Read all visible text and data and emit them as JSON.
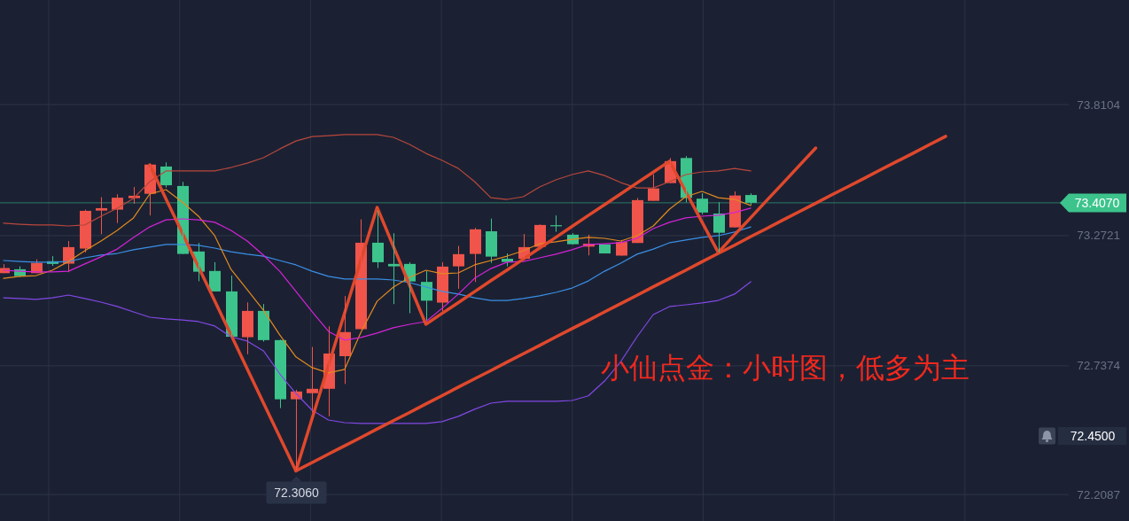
{
  "chart_data": {
    "type": "candlestick",
    "categories": [
      null,
      null,
      null,
      null,
      null,
      null,
      null,
      null,
      null,
      null,
      null,
      null,
      null,
      null,
      null,
      null,
      null,
      null,
      null,
      null,
      null,
      null,
      null,
      null,
      null,
      null,
      null,
      null,
      null,
      null,
      null,
      null,
      null,
      null,
      null,
      null,
      null,
      null,
      null,
      null,
      null,
      null,
      null,
      null,
      null,
      null,
      null,
      null,
      null,
      null,
      null,
      null,
      null,
      null,
      null,
      null,
      null,
      null,
      null
    ],
    "ohlc": [
      [
        73.118,
        73.155,
        73.118,
        73.139
      ],
      [
        73.134,
        73.146,
        73.102,
        73.106
      ],
      [
        73.118,
        73.175,
        73.118,
        73.16
      ],
      [
        73.167,
        73.188,
        73.148,
        73.156
      ],
      [
        73.157,
        73.25,
        73.122,
        73.225
      ],
      [
        73.219,
        73.379,
        73.203,
        73.374
      ],
      [
        73.375,
        73.43,
        73.278,
        73.385
      ],
      [
        73.379,
        73.442,
        73.324,
        73.428
      ],
      [
        73.426,
        73.472,
        73.403,
        73.436
      ],
      [
        73.444,
        73.567,
        73.355,
        73.564
      ],
      [
        73.556,
        73.573,
        73.47,
        73.479
      ],
      [
        73.476,
        73.493,
        73.197,
        73.197
      ],
      [
        73.207,
        73.242,
        73.085,
        73.124
      ],
      [
        73.127,
        73.163,
        73.043,
        73.043
      ],
      [
        73.043,
        73.108,
        72.851,
        72.857
      ],
      [
        72.855,
        72.998,
        72.785,
        72.963
      ],
      [
        72.963,
        72.991,
        72.837,
        72.843
      ],
      [
        72.843,
        72.845,
        72.564,
        72.6
      ],
      [
        72.6,
        72.639,
        72.306,
        72.632
      ],
      [
        72.625,
        72.815,
        72.545,
        72.643
      ],
      [
        72.643,
        72.9,
        72.53,
        72.788
      ],
      [
        72.777,
        73.024,
        72.663,
        72.876
      ],
      [
        72.888,
        73.339,
        72.888,
        73.243
      ],
      [
        73.243,
        73.374,
        73.139,
        73.163
      ],
      [
        73.156,
        73.282,
        72.991,
        73.146
      ],
      [
        73.156,
        73.163,
        72.954,
        73.084
      ],
      [
        73.082,
        73.127,
        72.924,
        73.005
      ],
      [
        72.997,
        73.163,
        72.96,
        73.145
      ],
      [
        73.146,
        73.23,
        73.054,
        73.196
      ],
      [
        73.197,
        73.304,
        73.082,
        73.298
      ],
      [
        73.29,
        73.342,
        73.16,
        73.186
      ],
      [
        73.177,
        73.199,
        73.146,
        73.164
      ],
      [
        73.177,
        73.279,
        73.177,
        73.225
      ],
      [
        73.226,
        73.318,
        73.226,
        73.316
      ],
      [
        73.315,
        73.355,
        73.288,
        73.315
      ],
      [
        73.276,
        73.282,
        73.235,
        73.237
      ],
      [
        73.227,
        73.276,
        73.191,
        73.239
      ],
      [
        73.236,
        73.236,
        73.199,
        73.199
      ],
      [
        73.19,
        73.254,
        73.19,
        73.246
      ],
      [
        73.242,
        73.427,
        73.242,
        73.418
      ],
      [
        73.415,
        73.524,
        73.415,
        73.466
      ],
      [
        73.488,
        73.591,
        73.488,
        73.578
      ],
      [
        73.591,
        73.599,
        73.409,
        73.427
      ],
      [
        73.424,
        73.446,
        73.36,
        73.367
      ],
      [
        73.363,
        73.409,
        73.203,
        73.284
      ],
      [
        73.306,
        73.454,
        73.306,
        73.437
      ],
      [
        73.439,
        73.446,
        73.397,
        73.407
      ],
      null,
      null,
      null,
      null,
      null,
      null,
      null,
      null,
      null,
      null,
      null,
      null
    ],
    "colors": [
      "#f0544a",
      "#3dc48c",
      "#f0544a",
      "#3dc48c",
      "#f0544a",
      "#f0544a",
      "#f0544a",
      "#f0544a",
      "#f0544a",
      "#f0544a",
      "#3dc48c",
      "#3dc48c",
      "#3dc48c",
      "#3dc48c",
      "#3dc48c",
      "#f0544a",
      "#3dc48c",
      "#3dc48c",
      "#f0544a",
      "#f0544a",
      "#f0544a",
      "#f0544a",
      "#f0544a",
      "#3dc48c",
      "#3dc48c",
      "#3dc48c",
      "#3dc48c",
      "#f0544a",
      "#f0544a",
      "#f0544a",
      "#3dc48c",
      "#3dc48c",
      "#f0544a",
      "#f0544a",
      "#3dc48c",
      "#3dc48c",
      "#f0544a",
      "#3dc48c",
      "#f0544a",
      "#f0544a",
      "#f0544a",
      "#f0544a",
      "#3dc48c",
      "#3dc48c",
      "#3dc48c",
      "#f0544a",
      "#3dc48c",
      null,
      null,
      null,
      null,
      null,
      null,
      null,
      null,
      null,
      null,
      null,
      null
    ],
    "series": [
      {
        "type": "line",
        "color": "#b9473c",
        "values": [
          73.323,
          73.319,
          73.316,
          73.316,
          73.312,
          73.316,
          73.352,
          73.385,
          73.425,
          73.494,
          73.538,
          73.538,
          73.538,
          73.538,
          73.552,
          73.57,
          73.592,
          73.628,
          73.661,
          73.679,
          73.683,
          73.687,
          73.687,
          73.687,
          73.676,
          73.647,
          73.61,
          73.581,
          73.548,
          73.494,
          73.428,
          73.421,
          73.432,
          73.472,
          73.501,
          73.523,
          73.538,
          73.519,
          73.49,
          73.468,
          73.468,
          73.494,
          73.523,
          73.534,
          73.538,
          73.548,
          73.538,
          null,
          null,
          null,
          null,
          null,
          null,
          null,
          null,
          null,
          null,
          null,
          null
        ]
      },
      {
        "type": "line",
        "color": "#3b8fe6",
        "values": [
          73.17,
          73.166,
          73.163,
          73.163,
          73.166,
          73.181,
          73.192,
          73.199,
          73.214,
          73.225,
          73.236,
          73.236,
          73.232,
          73.221,
          73.206,
          73.196,
          73.188,
          73.17,
          73.152,
          73.126,
          73.105,
          73.094,
          73.094,
          73.094,
          73.09,
          73.079,
          73.061,
          73.043,
          73.032,
          73.017,
          73.006,
          73.006,
          73.014,
          73.025,
          73.039,
          73.057,
          73.086,
          73.126,
          73.159,
          73.196,
          73.217,
          73.243,
          73.254,
          73.265,
          73.272,
          73.287,
          73.308,
          null,
          null,
          null,
          null,
          null,
          null,
          null,
          null,
          null,
          null,
          null,
          null
        ]
      },
      {
        "type": "line",
        "color": "#8348e6",
        "values": [
          73.017,
          73.014,
          73.01,
          73.017,
          73.028,
          73.014,
          72.999,
          72.981,
          72.959,
          72.937,
          72.93,
          72.926,
          72.919,
          72.901,
          72.857,
          72.839,
          72.799,
          72.705,
          72.624,
          72.555,
          72.515,
          72.504,
          72.501,
          72.501,
          72.501,
          72.501,
          72.501,
          72.508,
          72.53,
          72.559,
          72.584,
          72.592,
          72.592,
          72.592,
          72.592,
          72.595,
          72.614,
          72.675,
          72.755,
          72.857,
          72.948,
          72.981,
          72.988,
          72.996,
          73.006,
          73.032,
          73.083,
          null,
          null,
          null,
          null,
          null,
          null,
          null,
          null,
          null,
          null,
          null,
          null
        ]
      },
      {
        "type": "line",
        "color": "#e38a1f",
        "values": [
          73.097,
          73.105,
          73.108,
          73.13,
          73.166,
          73.21,
          73.25,
          73.294,
          73.345,
          73.443,
          73.461,
          73.41,
          73.352,
          73.272,
          73.134,
          73.05,
          72.966,
          72.865,
          72.774,
          72.73,
          72.708,
          72.723,
          72.875,
          73.003,
          73.061,
          73.101,
          73.13,
          73.116,
          73.119,
          73.152,
          73.17,
          73.188,
          73.21,
          73.239,
          73.247,
          73.257,
          73.265,
          73.261,
          73.25,
          73.272,
          73.312,
          73.381,
          73.432,
          73.454,
          73.428,
          73.421,
          73.396,
          null,
          null,
          null,
          null,
          null,
          null,
          null,
          null,
          null,
          null,
          null,
          null
        ]
      },
      {
        "type": "line",
        "color": "#d523d8",
        "values": [
          73.13,
          73.126,
          73.123,
          73.123,
          73.126,
          73.156,
          73.185,
          73.217,
          73.265,
          73.308,
          73.337,
          73.341,
          73.337,
          73.327,
          73.294,
          73.25,
          73.192,
          73.126,
          73.043,
          72.959,
          72.879,
          72.843,
          72.854,
          72.872,
          72.894,
          72.908,
          72.919,
          72.974,
          73.032,
          73.097,
          73.137,
          73.163,
          73.166,
          73.181,
          73.196,
          73.214,
          73.236,
          73.239,
          73.243,
          73.261,
          73.301,
          73.327,
          73.345,
          73.352,
          73.356,
          73.367,
          73.385,
          null,
          null,
          null,
          null,
          null,
          null,
          null,
          null,
          null,
          null,
          null,
          null
        ]
      },
      {
        "type": "line",
        "color": "#e0482c",
        "values": [
          null,
          null,
          null,
          null,
          null,
          null,
          null,
          null,
          null,
          73.563,
          73.423,
          73.284,
          73.144,
          73.004,
          72.865,
          72.725,
          72.585,
          72.446,
          72.306,
          72.522,
          72.739,
          72.955,
          73.172,
          73.388,
          73.228,
          73.068,
          72.908,
          72.953,
          72.997,
          73.042,
          73.087,
          73.131,
          73.176,
          73.221,
          73.265,
          73.31,
          73.355,
          73.399,
          73.444,
          73.489,
          73.533,
          73.578,
          73.453,
          73.328,
          73.203,
          73.275,
          73.346,
          73.418,
          73.489,
          73.561,
          73.632,
          null,
          null,
          null,
          null,
          null,
          null,
          null,
          null
        ]
      },
      {
        "type": "line",
        "color": "#e0482c",
        "values": [
          null,
          null,
          null,
          null,
          null,
          null,
          null,
          null,
          null,
          null,
          null,
          null,
          null,
          null,
          null,
          null,
          null,
          null,
          72.306,
          72.34,
          72.375,
          72.409,
          72.443,
          72.478,
          72.512,
          72.546,
          72.581,
          72.615,
          72.65,
          72.684,
          72.718,
          72.753,
          72.787,
          72.821,
          72.856,
          72.89,
          72.924,
          72.959,
          72.993,
          73.027,
          73.062,
          73.096,
          73.13,
          73.165,
          73.199,
          73.233,
          73.268,
          73.302,
          73.337,
          73.371,
          73.405,
          73.44,
          73.474,
          73.508,
          73.543,
          73.577,
          73.611,
          73.646,
          73.68
        ]
      }
    ],
    "ylim": [
      72.1,
      74.24
    ],
    "yticks": [
      73.8104,
      73.2721,
      72.7374,
      72.2087
    ],
    "grid": true,
    "tick_labels": "y",
    "ref_lines": [
      {
        "axis": "y",
        "value": 73.407,
        "label": "73.4070",
        "color": "#3dc48c"
      }
    ],
    "annotations": [
      "小仙点金：小时图，低多为主",
      {
        "text": "72.3060",
        "y": 72.306
      },
      "72.4500"
    ]
  }
}
